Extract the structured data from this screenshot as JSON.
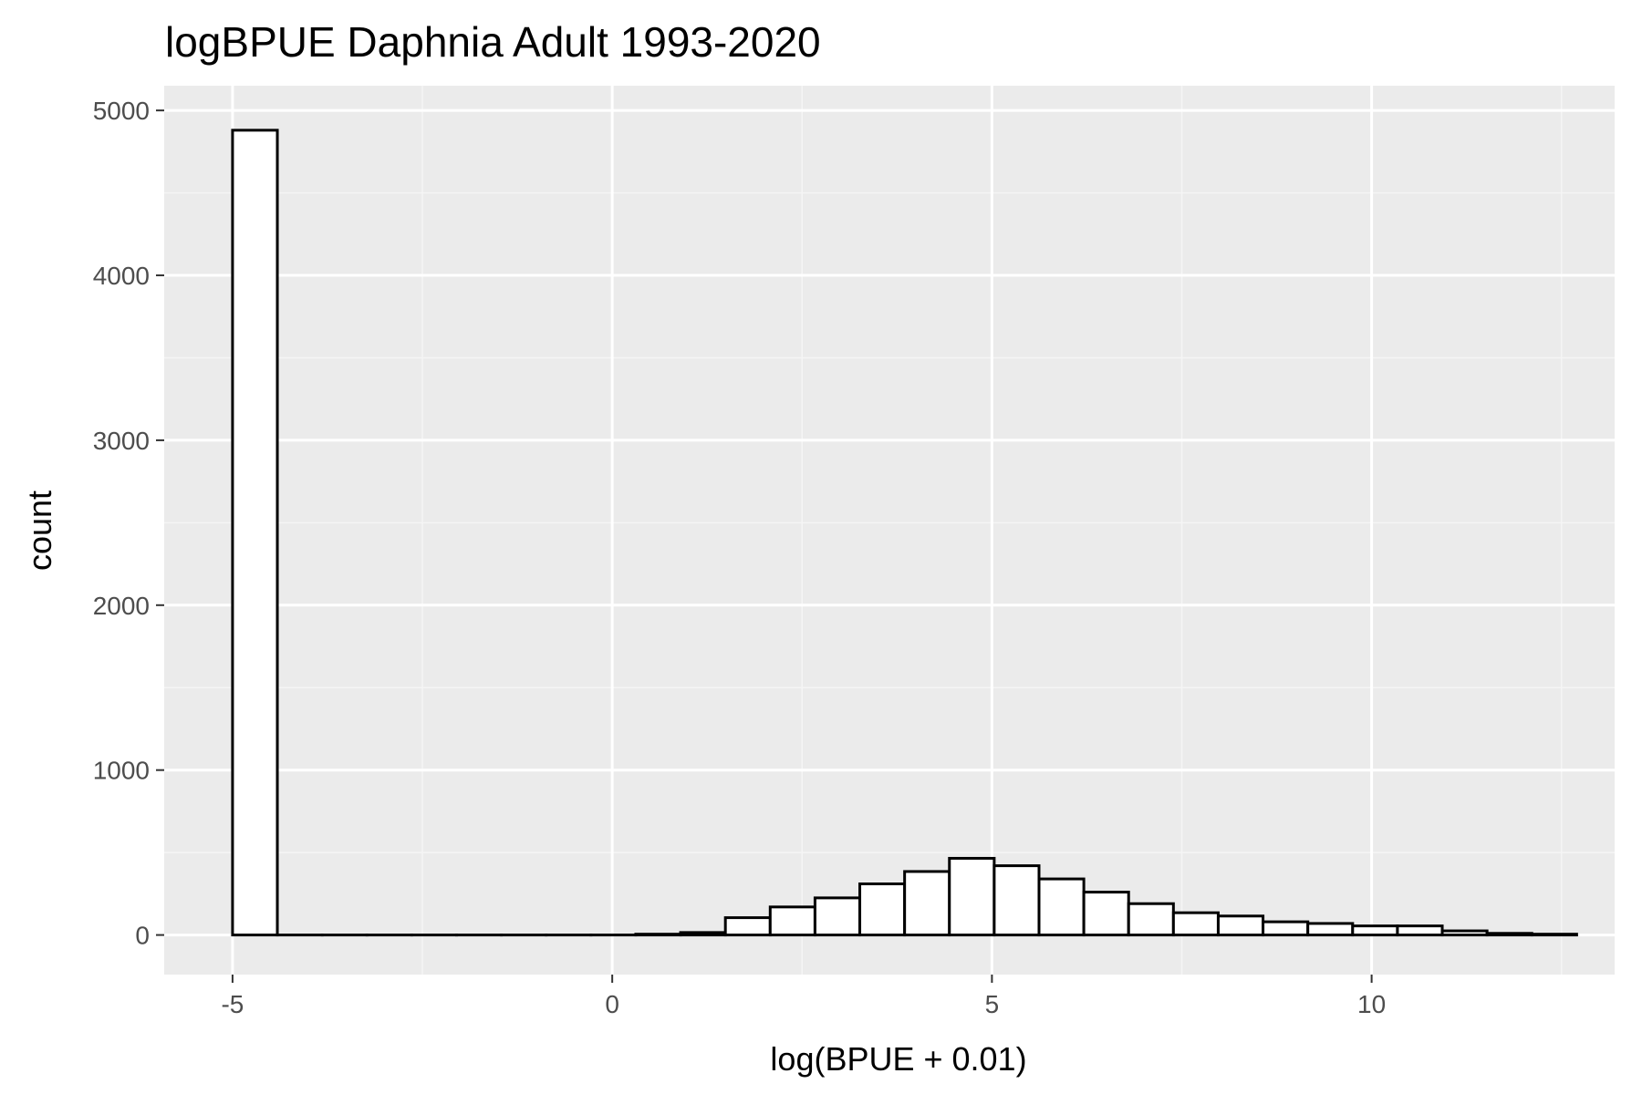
{
  "chart_data": {
    "type": "bar",
    "title": "logBPUE Daphnia Adult  1993-2020",
    "xlabel": "log(BPUE + 0.01)",
    "ylabel": "count",
    "xlim": [
      -5.9,
      13.2
    ],
    "ylim": [
      -240,
      5150
    ],
    "x_ticks": [
      -5,
      0,
      5,
      10
    ],
    "x_tick_labels": [
      "-5",
      "0",
      "5",
      "10"
    ],
    "y_ticks": [
      0,
      1000,
      2000,
      3000,
      4000,
      5000
    ],
    "y_tick_labels": [
      "0",
      "1000",
      "2000",
      "3000",
      "4000",
      "5000"
    ],
    "grid": true,
    "legend": "none",
    "bin_width": 0.59,
    "bins": [
      {
        "x_start": -5.0,
        "count": 4880
      },
      {
        "x_start": -4.41,
        "count": 0
      },
      {
        "x_start": -3.82,
        "count": 0
      },
      {
        "x_start": -3.23,
        "count": 0
      },
      {
        "x_start": -2.64,
        "count": 0
      },
      {
        "x_start": -2.05,
        "count": 0
      },
      {
        "x_start": -1.46,
        "count": 0
      },
      {
        "x_start": -0.87,
        "count": 0
      },
      {
        "x_start": -0.28,
        "count": 0
      },
      {
        "x_start": 0.31,
        "count": 5
      },
      {
        "x_start": 0.9,
        "count": 15
      },
      {
        "x_start": 1.49,
        "count": 105
      },
      {
        "x_start": 2.08,
        "count": 170
      },
      {
        "x_start": 2.67,
        "count": 225
      },
      {
        "x_start": 3.26,
        "count": 310
      },
      {
        "x_start": 3.85,
        "count": 385
      },
      {
        "x_start": 4.44,
        "count": 465
      },
      {
        "x_start": 5.03,
        "count": 420
      },
      {
        "x_start": 5.62,
        "count": 340
      },
      {
        "x_start": 6.21,
        "count": 260
      },
      {
        "x_start": 6.8,
        "count": 190
      },
      {
        "x_start": 7.39,
        "count": 135
      },
      {
        "x_start": 7.98,
        "count": 115
      },
      {
        "x_start": 8.57,
        "count": 80
      },
      {
        "x_start": 9.16,
        "count": 70
      },
      {
        "x_start": 9.75,
        "count": 55
      },
      {
        "x_start": 10.34,
        "count": 55
      },
      {
        "x_start": 10.93,
        "count": 25
      },
      {
        "x_start": 11.52,
        "count": 10
      },
      {
        "x_start": 12.11,
        "count": 5
      }
    ],
    "colors": {
      "panel_background": "#ebebeb",
      "grid_major": "#ffffff",
      "grid_minor": "#f5f5f5",
      "bar_fill": "#ffffff",
      "bar_stroke": "#000000",
      "tick_label": "#4d4d4d",
      "tick_mark": "#333333"
    }
  }
}
